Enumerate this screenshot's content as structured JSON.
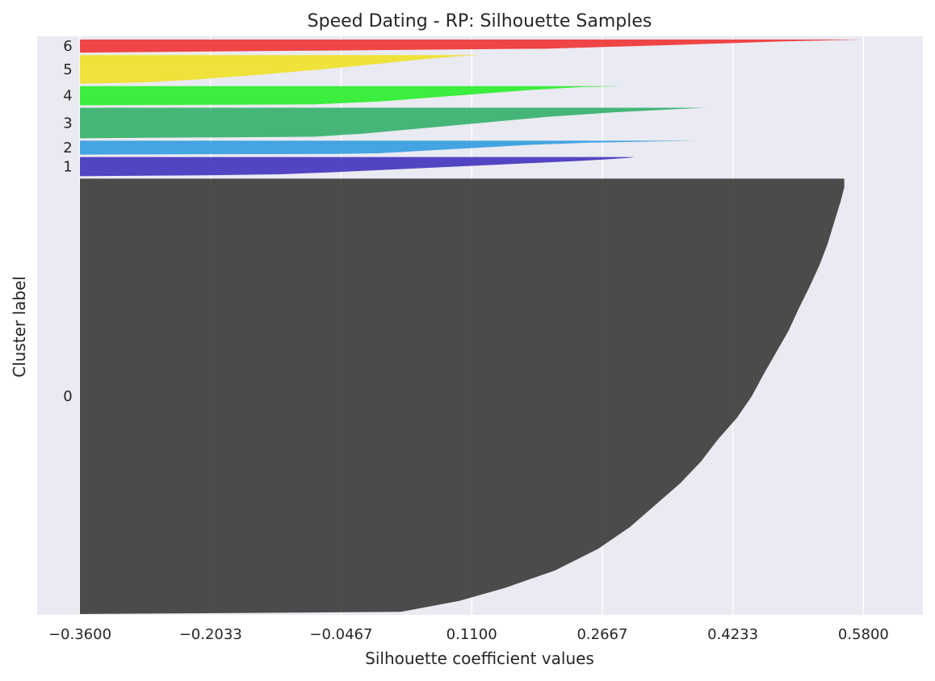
{
  "chart_data": {
    "type": "area",
    "title": "Speed Dating - RP: Silhouette Samples",
    "xlabel": "Silhouette coefficient values",
    "ylabel": "Cluster label",
    "xlim": [
      -0.36,
      0.6
    ],
    "xticks": [
      "−0.3600",
      "−0.2033",
      "−0.0467",
      "0.1100",
      "0.2667",
      "0.4233",
      "0.5800"
    ],
    "xtick_values": [
      -0.36,
      -0.2033,
      -0.0467,
      0.11,
      0.2667,
      0.4233,
      0.58
    ],
    "grid": true,
    "background": "#eaeaf2",
    "clusters": [
      {
        "label": "0",
        "color": "#424242",
        "size": 1000,
        "profile": [
          [
            0.0,
            -0.36
          ],
          [
            0.005,
            0.025
          ],
          [
            0.03,
            0.095
          ],
          [
            0.06,
            0.15
          ],
          [
            0.1,
            0.21
          ],
          [
            0.15,
            0.262
          ],
          [
            0.2,
            0.3
          ],
          [
            0.25,
            0.33
          ],
          [
            0.3,
            0.36
          ],
          [
            0.35,
            0.385
          ],
          [
            0.4,
            0.405
          ],
          [
            0.45,
            0.428
          ],
          [
            0.5,
            0.446
          ],
          [
            0.55,
            0.46
          ],
          [
            0.6,
            0.475
          ],
          [
            0.65,
            0.49
          ],
          [
            0.7,
            0.502
          ],
          [
            0.75,
            0.515
          ],
          [
            0.8,
            0.527
          ],
          [
            0.85,
            0.537
          ],
          [
            0.9,
            0.545
          ],
          [
            0.95,
            0.553
          ],
          [
            0.98,
            0.557
          ],
          [
            1.0,
            0.557
          ]
        ]
      },
      {
        "label": "1",
        "color": "#4a3cbf",
        "size": 44,
        "profile": [
          [
            0.0,
            -0.36
          ],
          [
            0.05,
            -0.2
          ],
          [
            0.1,
            -0.12
          ],
          [
            0.2,
            -0.06
          ],
          [
            0.3,
            -0.01
          ],
          [
            0.4,
            0.04
          ],
          [
            0.5,
            0.09
          ],
          [
            0.6,
            0.14
          ],
          [
            0.7,
            0.19
          ],
          [
            0.8,
            0.24
          ],
          [
            0.9,
            0.28
          ],
          [
            0.96,
            0.3
          ],
          [
            1.0,
            0.305
          ]
        ]
      },
      {
        "label": "2",
        "color": "#3ca0e0",
        "size": 32,
        "profile": [
          [
            0.0,
            -0.36
          ],
          [
            0.05,
            -0.05
          ],
          [
            0.1,
            0.0
          ],
          [
            0.3,
            0.06
          ],
          [
            0.5,
            0.12
          ],
          [
            0.7,
            0.18
          ],
          [
            0.85,
            0.25
          ],
          [
            0.95,
            0.33
          ],
          [
            1.0,
            0.38
          ]
        ]
      },
      {
        "label": "3",
        "color": "#3cb371",
        "size": 70,
        "profile": [
          [
            0.0,
            -0.36
          ],
          [
            0.05,
            -0.08
          ],
          [
            0.15,
            -0.02
          ],
          [
            0.3,
            0.04
          ],
          [
            0.5,
            0.12
          ],
          [
            0.7,
            0.2
          ],
          [
            0.85,
            0.28
          ],
          [
            0.95,
            0.35
          ],
          [
            1.0,
            0.39
          ]
        ]
      },
      {
        "label": "4",
        "color": "#33ee33",
        "size": 44,
        "profile": [
          [
            0.0,
            -0.36
          ],
          [
            0.05,
            -0.08
          ],
          [
            0.2,
            0.0
          ],
          [
            0.4,
            0.06
          ],
          [
            0.6,
            0.12
          ],
          [
            0.8,
            0.18
          ],
          [
            0.95,
            0.24
          ],
          [
            1.0,
            0.29
          ]
        ]
      },
      {
        "label": "5",
        "color": "#f0e030",
        "size": 66,
        "profile": [
          [
            0.0,
            -0.36
          ],
          [
            0.05,
            -0.28
          ],
          [
            0.15,
            -0.22
          ],
          [
            0.3,
            -0.15
          ],
          [
            0.5,
            -0.07
          ],
          [
            0.7,
            0.0
          ],
          [
            0.85,
            0.05
          ],
          [
            0.95,
            0.09
          ],
          [
            1.0,
            0.12
          ]
        ]
      },
      {
        "label": "6",
        "color": "#f03c3c",
        "size": 30,
        "profile": [
          [
            0.0,
            -0.36
          ],
          [
            0.3,
            0.2
          ],
          [
            0.6,
            0.36
          ],
          [
            0.85,
            0.48
          ],
          [
            1.0,
            0.58
          ]
        ]
      }
    ]
  }
}
